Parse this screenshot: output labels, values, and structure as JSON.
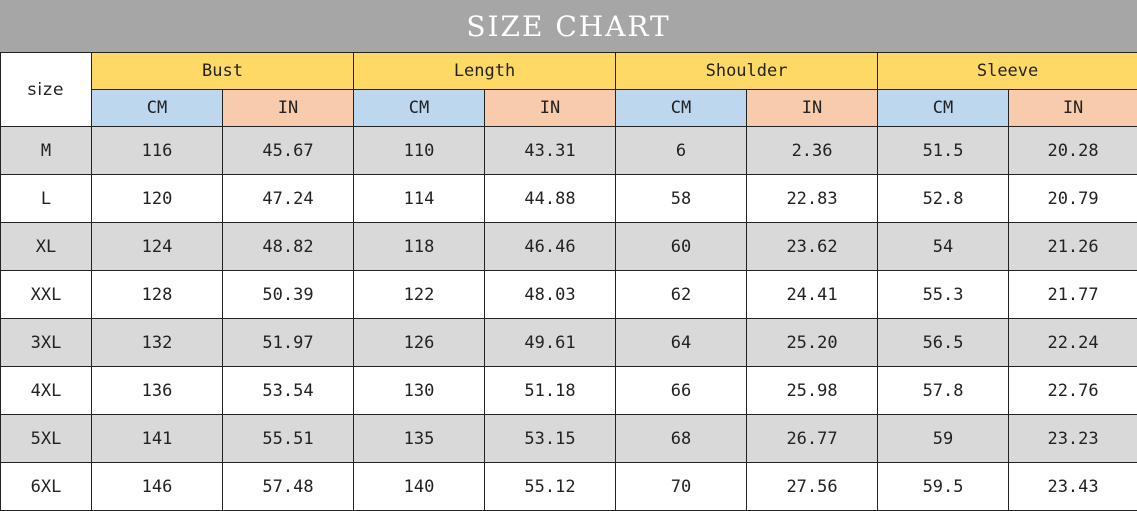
{
  "title": "SIZE CHART",
  "size_label": "size",
  "groups": [
    "Bust",
    "Length",
    "Shoulder",
    "Sleeve"
  ],
  "units": [
    "CM",
    "IN"
  ],
  "colors": {
    "title_bg": "#a6a6a6",
    "group_header": "#ffd966",
    "cm_header": "#bdd7ee",
    "in_header": "#f8cbad",
    "row_shade": "#d9d9d9"
  },
  "rows": [
    [
      "M",
      "116",
      "45.67",
      "110",
      "43.31",
      "6",
      "2.36",
      "51.5",
      "20.28"
    ],
    [
      "L",
      "120",
      "47.24",
      "114",
      "44.88",
      "58",
      "22.83",
      "52.8",
      "20.79"
    ],
    [
      "XL",
      "124",
      "48.82",
      "118",
      "46.46",
      "60",
      "23.62",
      "54",
      "21.26"
    ],
    [
      "XXL",
      "128",
      "50.39",
      "122",
      "48.03",
      "62",
      "24.41",
      "55.3",
      "21.77"
    ],
    [
      "3XL",
      "132",
      "51.97",
      "126",
      "49.61",
      "64",
      "25.20",
      "56.5",
      "22.24"
    ],
    [
      "4XL",
      "136",
      "53.54",
      "130",
      "51.18",
      "66",
      "25.98",
      "57.8",
      "22.76"
    ],
    [
      "5XL",
      "141",
      "55.51",
      "135",
      "53.15",
      "68",
      "26.77",
      "59",
      "23.23"
    ],
    [
      "6XL",
      "146",
      "57.48",
      "140",
      "55.12",
      "70",
      "27.56",
      "59.5",
      "23.43"
    ]
  ]
}
